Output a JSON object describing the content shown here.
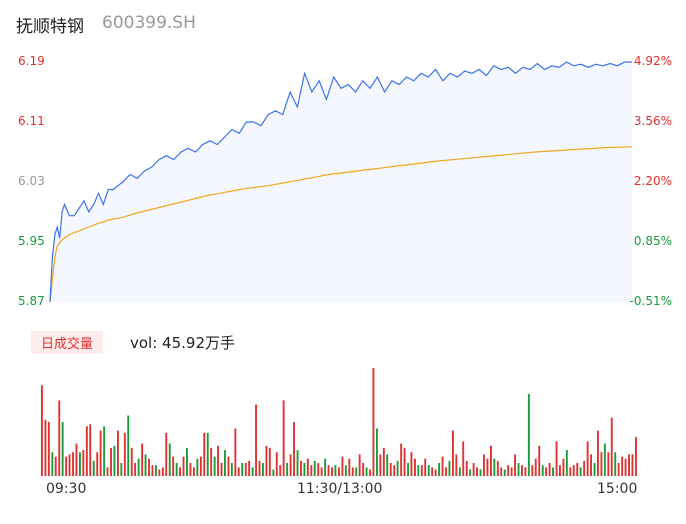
{
  "header": {
    "title": "抚顺特钢",
    "code": "600399.SH"
  },
  "colors": {
    "up": "#e0312f",
    "down": "#1a9a3a",
    "price_line": "#3d73e6",
    "avg_line": "#f0a81e",
    "area_fill": "#f4f7fd"
  },
  "volume": {
    "badge": "日成交量",
    "summary": "vol: 45.92万手"
  },
  "chart_data": {
    "type": "line",
    "title": "抚顺特钢",
    "price_axis": {
      "ticks": [
        "6.19",
        "6.11",
        "6.03",
        "5.95",
        "5.87"
      ],
      "ylim": [
        5.87,
        6.19
      ]
    },
    "pct_axis": {
      "ticks": [
        "4.92%",
        "3.56%",
        "2.20%",
        "0.85%",
        "-0.51%"
      ]
    },
    "x_ticks": [
      "09:30",
      "11:30/13:00",
      "15:00"
    ],
    "series": [
      {
        "name": "price",
        "x": [
          0,
          1,
          2,
          3,
          4,
          5,
          6,
          8,
          10,
          12,
          14,
          16,
          18,
          20,
          22,
          24,
          26,
          28,
          30,
          33,
          36,
          39,
          42,
          45,
          48,
          51,
          54,
          57,
          60,
          63,
          66,
          69,
          72,
          75,
          78,
          81,
          84,
          87,
          90,
          93,
          96,
          99,
          102,
          105,
          108,
          111,
          114,
          117,
          120,
          123,
          126,
          129,
          132,
          135,
          138,
          141,
          144,
          147,
          150,
          153,
          156,
          159,
          162,
          165,
          168,
          171,
          174,
          177,
          180,
          183,
          186,
          189,
          192,
          195,
          198,
          201,
          204,
          207,
          210,
          213,
          216,
          219,
          222,
          225,
          228,
          231,
          234,
          237,
          240
        ],
        "values": [
          5.87,
          5.93,
          5.96,
          5.97,
          5.955,
          5.99,
          6.0,
          5.985,
          5.985,
          5.995,
          6.005,
          5.99,
          6.0,
          6.015,
          6.0,
          6.02,
          6.02,
          6.025,
          6.03,
          6.04,
          6.035,
          6.045,
          6.05,
          6.06,
          6.065,
          6.06,
          6.07,
          6.075,
          6.07,
          6.08,
          6.085,
          6.08,
          6.09,
          6.1,
          6.095,
          6.11,
          6.11,
          6.105,
          6.12,
          6.125,
          6.12,
          6.15,
          6.13,
          6.175,
          6.15,
          6.165,
          6.14,
          6.17,
          6.155,
          6.16,
          6.15,
          6.165,
          6.155,
          6.17,
          6.15,
          6.165,
          6.16,
          6.17,
          6.165,
          6.175,
          6.17,
          6.18,
          6.165,
          6.175,
          6.17,
          6.178,
          6.175,
          6.18,
          6.172,
          6.185,
          6.18,
          6.183,
          6.175,
          6.183,
          6.18,
          6.188,
          6.18,
          6.185,
          6.183,
          6.19,
          6.185,
          6.187,
          6.183,
          6.187,
          6.185,
          6.188,
          6.185,
          6.19,
          6.19
        ]
      },
      {
        "name": "avg",
        "x": [
          0,
          1,
          2,
          3,
          5,
          8,
          12,
          16,
          20,
          25,
          30,
          35,
          40,
          45,
          50,
          55,
          60,
          65,
          70,
          75,
          80,
          90,
          95,
          100,
          105,
          110,
          115,
          120,
          125,
          130,
          135,
          140,
          145,
          150,
          155,
          160,
          170,
          180,
          190,
          200,
          210,
          220,
          230,
          240
        ],
        "values": [
          5.87,
          5.9,
          5.93,
          5.945,
          5.953,
          5.96,
          5.965,
          5.97,
          5.975,
          5.98,
          5.983,
          5.988,
          5.992,
          5.996,
          6.0,
          6.004,
          6.008,
          6.012,
          6.015,
          6.018,
          6.021,
          6.025,
          6.028,
          6.031,
          6.034,
          6.037,
          6.04,
          6.042,
          6.044,
          6.046,
          6.048,
          6.05,
          6.052,
          6.054,
          6.056,
          6.058,
          6.061,
          6.064,
          6.067,
          6.07,
          6.072,
          6.074,
          6.076,
          6.077
        ]
      }
    ],
    "volume_bars": [
      [
        0,
        42,
        "u"
      ],
      [
        1,
        26,
        "u"
      ],
      [
        2,
        25,
        "u"
      ],
      [
        3,
        11,
        "d"
      ],
      [
        4,
        9,
        "u"
      ],
      [
        5,
        35,
        "u"
      ],
      [
        6,
        25,
        "d"
      ],
      [
        7,
        9,
        "u"
      ],
      [
        8,
        10,
        "u"
      ],
      [
        9,
        11,
        "u"
      ],
      [
        10,
        15,
        "u"
      ],
      [
        11,
        11,
        "d"
      ],
      [
        12,
        12,
        "u"
      ],
      [
        13,
        23,
        "u"
      ],
      [
        14,
        24,
        "u"
      ],
      [
        15,
        7,
        "d"
      ],
      [
        16,
        11,
        "u"
      ],
      [
        17,
        21,
        "u"
      ],
      [
        18,
        23,
        "d"
      ],
      [
        19,
        4,
        "u"
      ],
      [
        20,
        13,
        "u"
      ],
      [
        21,
        14,
        "d"
      ],
      [
        22,
        21,
        "u"
      ],
      [
        23,
        6,
        "d"
      ],
      [
        24,
        20,
        "u"
      ],
      [
        25,
        28,
        "d"
      ],
      [
        26,
        13,
        "u"
      ],
      [
        27,
        6,
        "u"
      ],
      [
        28,
        8,
        "d"
      ],
      [
        29,
        15,
        "u"
      ],
      [
        30,
        10,
        "d"
      ],
      [
        31,
        8,
        "u"
      ],
      [
        32,
        5,
        "u"
      ],
      [
        33,
        5,
        "d"
      ],
      [
        34,
        3,
        "u"
      ],
      [
        35,
        4,
        "u"
      ],
      [
        36,
        20,
        "u"
      ],
      [
        37,
        15,
        "d"
      ],
      [
        38,
        9,
        "u"
      ],
      [
        39,
        6,
        "d"
      ],
      [
        40,
        4,
        "u"
      ],
      [
        41,
        9,
        "u"
      ],
      [
        42,
        13,
        "d"
      ],
      [
        43,
        6,
        "u"
      ],
      [
        44,
        4,
        "u"
      ],
      [
        45,
        8,
        "d"
      ],
      [
        46,
        9,
        "u"
      ],
      [
        47,
        20,
        "u"
      ],
      [
        48,
        20,
        "d"
      ],
      [
        49,
        13,
        "u"
      ],
      [
        50,
        9,
        "d"
      ],
      [
        51,
        14,
        "u"
      ],
      [
        52,
        6,
        "u"
      ],
      [
        53,
        12,
        "d"
      ],
      [
        54,
        9,
        "u"
      ],
      [
        55,
        6,
        "d"
      ],
      [
        56,
        22,
        "u"
      ],
      [
        57,
        4,
        "u"
      ],
      [
        58,
        6,
        "d"
      ],
      [
        59,
        6,
        "u"
      ],
      [
        60,
        7,
        "u"
      ],
      [
        61,
        4,
        "d"
      ],
      [
        62,
        33,
        "u"
      ],
      [
        63,
        7,
        "u"
      ],
      [
        64,
        6,
        "d"
      ],
      [
        65,
        14,
        "u"
      ],
      [
        66,
        13,
        "u"
      ],
      [
        67,
        3,
        "d"
      ],
      [
        68,
        11,
        "u"
      ],
      [
        69,
        5,
        "u"
      ],
      [
        70,
        35,
        "u"
      ],
      [
        71,
        6,
        "d"
      ],
      [
        72,
        10,
        "u"
      ],
      [
        73,
        25,
        "u"
      ],
      [
        74,
        12,
        "d"
      ],
      [
        75,
        7,
        "u"
      ],
      [
        76,
        6,
        "d"
      ],
      [
        77,
        8,
        "u"
      ],
      [
        78,
        5,
        "u"
      ],
      [
        79,
        7,
        "d"
      ],
      [
        80,
        6,
        "u"
      ],
      [
        81,
        4,
        "u"
      ],
      [
        82,
        8,
        "d"
      ],
      [
        83,
        5,
        "u"
      ],
      [
        84,
        4,
        "u"
      ],
      [
        85,
        5,
        "d"
      ],
      [
        86,
        4,
        "u"
      ],
      [
        87,
        9,
        "u"
      ],
      [
        88,
        5,
        "d"
      ],
      [
        89,
        8,
        "u"
      ],
      [
        90,
        4,
        "u"
      ],
      [
        91,
        4,
        "d"
      ],
      [
        92,
        10,
        "u"
      ],
      [
        93,
        6,
        "u"
      ],
      [
        94,
        4,
        "d"
      ],
      [
        95,
        3,
        "u"
      ],
      [
        96,
        50,
        "u"
      ],
      [
        97,
        22,
        "d"
      ],
      [
        98,
        10,
        "u"
      ],
      [
        99,
        13,
        "u"
      ],
      [
        100,
        10,
        "d"
      ],
      [
        101,
        6,
        "u"
      ],
      [
        102,
        5,
        "u"
      ],
      [
        103,
        7,
        "d"
      ],
      [
        104,
        15,
        "u"
      ],
      [
        105,
        13,
        "u"
      ],
      [
        106,
        6,
        "d"
      ],
      [
        107,
        11,
        "u"
      ],
      [
        108,
        8,
        "u"
      ],
      [
        109,
        5,
        "d"
      ],
      [
        110,
        5,
        "u"
      ],
      [
        111,
        8,
        "u"
      ],
      [
        112,
        5,
        "d"
      ],
      [
        113,
        4,
        "u"
      ],
      [
        114,
        3,
        "u"
      ],
      [
        115,
        6,
        "d"
      ],
      [
        116,
        9,
        "u"
      ],
      [
        117,
        4,
        "u"
      ],
      [
        118,
        7,
        "d"
      ],
      [
        119,
        21,
        "u"
      ],
      [
        120,
        10,
        "u"
      ],
      [
        121,
        4,
        "d"
      ],
      [
        122,
        16,
        "u"
      ],
      [
        123,
        7,
        "u"
      ],
      [
        124,
        3,
        "d"
      ],
      [
        125,
        6,
        "u"
      ],
      [
        126,
        4,
        "u"
      ],
      [
        127,
        3,
        "d"
      ],
      [
        128,
        10,
        "u"
      ],
      [
        129,
        8,
        "u"
      ],
      [
        130,
        14,
        "u"
      ],
      [
        131,
        8,
        "d"
      ],
      [
        132,
        7,
        "u"
      ],
      [
        133,
        4,
        "u"
      ],
      [
        134,
        3,
        "d"
      ],
      [
        135,
        5,
        "u"
      ],
      [
        136,
        4,
        "u"
      ],
      [
        137,
        10,
        "u"
      ],
      [
        138,
        6,
        "d"
      ],
      [
        139,
        5,
        "u"
      ],
      [
        140,
        4,
        "u"
      ],
      [
        141,
        38,
        "d"
      ],
      [
        142,
        5,
        "u"
      ],
      [
        143,
        8,
        "u"
      ],
      [
        144,
        14,
        "u"
      ],
      [
        145,
        5,
        "d"
      ],
      [
        146,
        4,
        "u"
      ],
      [
        147,
        6,
        "u"
      ],
      [
        148,
        4,
        "d"
      ],
      [
        149,
        16,
        "u"
      ],
      [
        150,
        5,
        "u"
      ],
      [
        151,
        8,
        "u"
      ],
      [
        152,
        12,
        "d"
      ],
      [
        153,
        4,
        "u"
      ],
      [
        154,
        5,
        "u"
      ],
      [
        155,
        6,
        "u"
      ],
      [
        156,
        4,
        "d"
      ],
      [
        157,
        7,
        "u"
      ],
      [
        158,
        16,
        "u"
      ],
      [
        159,
        10,
        "u"
      ],
      [
        160,
        6,
        "d"
      ],
      [
        161,
        21,
        "u"
      ],
      [
        162,
        11,
        "u"
      ],
      [
        163,
        15,
        "d"
      ],
      [
        164,
        11,
        "u"
      ],
      [
        165,
        27,
        "u"
      ],
      [
        166,
        11,
        "d"
      ],
      [
        167,
        6,
        "u"
      ],
      [
        168,
        9,
        "u"
      ],
      [
        169,
        8,
        "u"
      ],
      [
        170,
        10,
        "u"
      ],
      [
        171,
        10,
        "u"
      ],
      [
        172,
        18,
        "u"
      ]
    ]
  }
}
